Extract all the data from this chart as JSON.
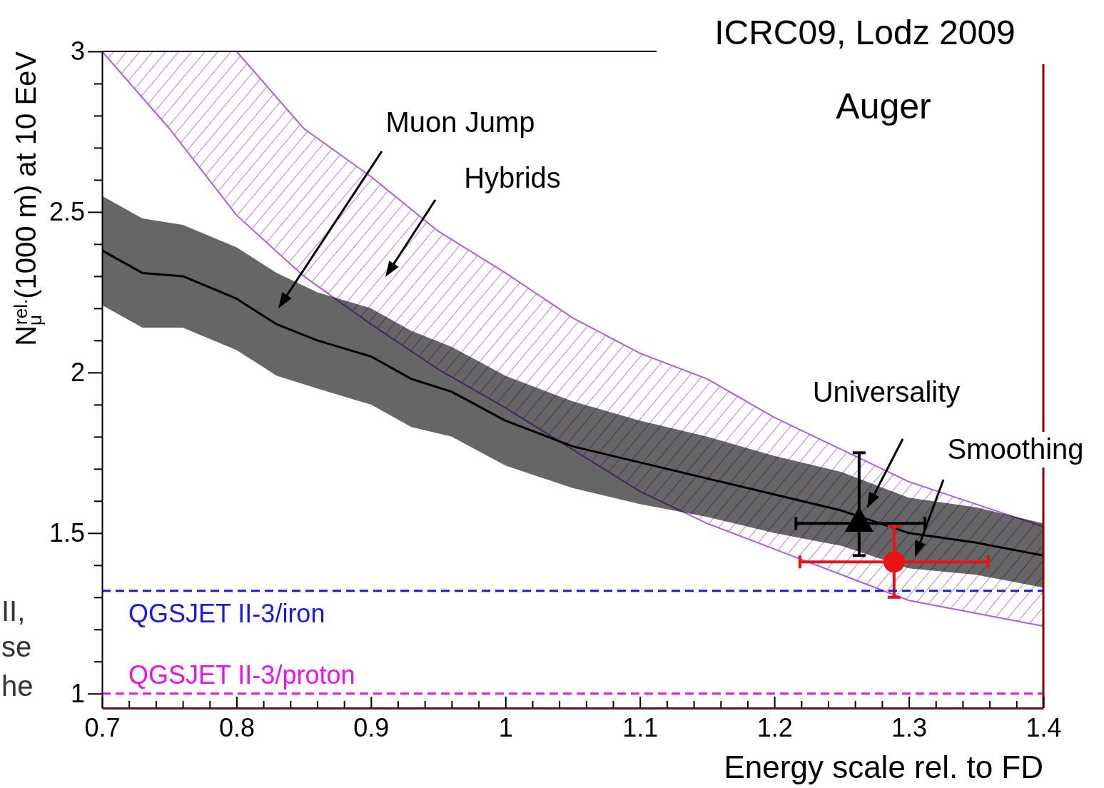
{
  "chart_data": {
    "type": "line",
    "title": "ICRC09, Lodz 2009",
    "xlabel": "Energy scale rel. to FD",
    "ylabel": "N$_{μ}$$^{rel.}$(1000 m) at 10 EeV",
    "xlim": [
      0.7,
      1.4
    ],
    "ylim": [
      0.955,
      3
    ],
    "xticks": [
      0.7,
      {
        "value": 0.72,
        "label": null
      },
      {
        "value": 0.74,
        "label": null
      },
      {
        "value": 0.76,
        "label": null
      },
      {
        "value": 0.78,
        "label": null
      },
      0.8,
      {
        "value": 0.82,
        "label": null
      },
      {
        "value": 0.84,
        "label": null
      },
      {
        "value": 0.86,
        "label": null
      },
      {
        "value": 0.88,
        "label": null
      },
      0.9,
      {
        "value": 0.92,
        "label": null
      },
      {
        "value": 0.94,
        "label": null
      },
      {
        "value": 0.96,
        "label": null
      },
      {
        "value": 0.98,
        "label": null
      },
      1,
      {
        "value": 1.02,
        "label": null
      },
      {
        "value": 1.04,
        "label": null
      },
      {
        "value": 1.06,
        "label": null
      },
      {
        "value": 1.08,
        "label": null
      },
      1.1,
      {
        "value": 1.12,
        "label": null
      },
      {
        "value": 1.14,
        "label": null
      },
      {
        "value": 1.16,
        "label": null
      },
      {
        "value": 1.18,
        "label": null
      },
      1.2,
      {
        "value": 1.22,
        "label": null
      },
      {
        "value": 1.24,
        "label": null
      },
      {
        "value": 1.26,
        "label": null
      },
      {
        "value": 1.28,
        "label": null
      },
      1.3,
      {
        "value": 1.32,
        "label": null
      },
      {
        "value": 1.34,
        "label": null
      },
      {
        "value": 1.36,
        "label": null
      },
      {
        "value": 1.38,
        "label": null
      },
      1.4
    ],
    "yticks": [
      1,
      {
        "value": 1.1,
        "label": null
      },
      {
        "value": 1.2,
        "label": null
      },
      {
        "value": 1.3,
        "label": null
      },
      {
        "value": 1.4,
        "label": null
      },
      1.5,
      {
        "value": 1.6,
        "label": null
      },
      {
        "value": 1.7,
        "label": null
      },
      {
        "value": 1.8,
        "label": null
      },
      {
        "value": 1.9,
        "label": null
      },
      2,
      {
        "value": 2.1,
        "label": null
      },
      {
        "value": 2.2,
        "label": null
      },
      {
        "value": 2.3,
        "label": null
      },
      {
        "value": 2.4,
        "label": null
      },
      2.5,
      {
        "value": 2.6,
        "label": null
      },
      {
        "value": 2.7,
        "label": null
      },
      {
        "value": 2.8,
        "label": null
      },
      {
        "value": 2.9,
        "label": null
      },
      3
    ],
    "series": [
      {
        "type": "area",
        "color": "#b05ce8",
        "x": [
          0.7,
          0.75,
          0.8,
          0.85,
          0.9,
          0.95,
          1.0,
          1.05,
          1.1,
          1.15,
          1.2,
          1.25,
          1.3,
          1.35,
          1.4
        ],
        "values": [
          null,
          null,
          null,
          null,
          null,
          null,
          null,
          null,
          null,
          null,
          null,
          null,
          null,
          null,
          null
        ],
        "lower": [
          3,
          2.76,
          2.49,
          2.3,
          2.15,
          2.01,
          1.89,
          1.76,
          1.63,
          1.53,
          1.45,
          1.37,
          1.29,
          1.25,
          1.21
        ],
        "upper": [
          3,
          3,
          3,
          2.76,
          2.61,
          2.44,
          2.31,
          2.17,
          2.06,
          1.98,
          1.86,
          1.76,
          1.66,
          1.59,
          1.52
        ]
      },
      {
        "color": "#000000",
        "x": [
          0.7,
          0.73,
          0.76,
          0.8,
          0.83,
          0.86,
          0.9,
          0.93,
          0.96,
          1.0,
          1.05,
          1.1,
          1.15,
          1.2,
          1.25,
          1.3,
          1.35,
          1.4
        ],
        "values": [
          2.38,
          2.31,
          2.3,
          2.23,
          2.15,
          2.1,
          2.05,
          1.98,
          1.94,
          1.85,
          1.77,
          1.72,
          1.67,
          1.62,
          1.57,
          1.5,
          1.47,
          1.43
        ],
        "lower": [
          2.21,
          2.14,
          2.14,
          2.07,
          1.99,
          1.95,
          1.9,
          1.83,
          1.8,
          1.71,
          1.64,
          1.59,
          1.55,
          1.5,
          1.46,
          1.39,
          1.37,
          1.33
        ],
        "upper": [
          2.55,
          2.48,
          2.46,
          2.39,
          2.31,
          2.25,
          2.2,
          2.13,
          2.08,
          1.99,
          1.91,
          1.85,
          1.8,
          1.74,
          1.69,
          1.61,
          1.58,
          1.53
        ]
      },
      {
        "type": "scatter",
        "color": "#000000",
        "marker": "triangle",
        "x": [
          1.263
        ],
        "values": [
          1.53
        ],
        "errors": [
          [
            1.43,
            1.75
          ]
        ],
        "xerrors": [
          [
            1.216,
            1.312
          ]
        ]
      },
      {
        "type": "scatter",
        "color": "#ee1111",
        "marker": "circle",
        "x": [
          1.289
        ],
        "values": [
          1.41
        ],
        "errors": [
          [
            1.3,
            1.52
          ]
        ],
        "xerrors": [
          [
            1.219,
            1.359
          ]
        ]
      }
    ],
    "ref_lines": [
      {
        "axis": "y",
        "value": 1.32,
        "label": "QGSJET II-3/iron",
        "color": "#1a1ae6",
        "line_style": "dashed"
      },
      {
        "axis": "y",
        "value": 1,
        "label": "QGSJET II-3/proton",
        "color": "#ee11ee",
        "line_style": "dashed"
      }
    ],
    "annotations": [
      "Muon Jump",
      "Hybrids",
      "Universality",
      "Smoothing",
      "Auger",
      "II,",
      "se",
      "he"
    ]
  }
}
